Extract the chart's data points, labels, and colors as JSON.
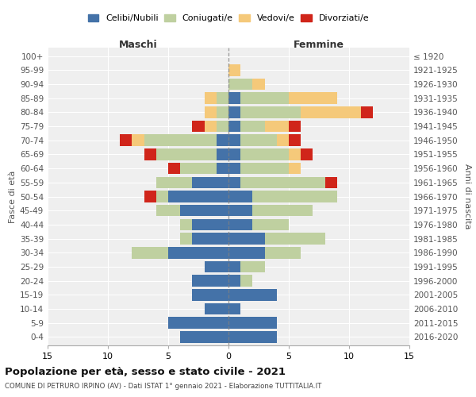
{
  "age_groups": [
    "0-4",
    "5-9",
    "10-14",
    "15-19",
    "20-24",
    "25-29",
    "30-34",
    "35-39",
    "40-44",
    "45-49",
    "50-54",
    "55-59",
    "60-64",
    "65-69",
    "70-74",
    "75-79",
    "80-84",
    "85-89",
    "90-94",
    "95-99",
    "100+"
  ],
  "birth_years": [
    "2016-2020",
    "2011-2015",
    "2006-2010",
    "2001-2005",
    "1996-2000",
    "1991-1995",
    "1986-1990",
    "1981-1985",
    "1976-1980",
    "1971-1975",
    "1966-1970",
    "1961-1965",
    "1956-1960",
    "1951-1955",
    "1946-1950",
    "1941-1945",
    "1936-1940",
    "1931-1935",
    "1926-1930",
    "1921-1925",
    "≤ 1920"
  ],
  "maschi": {
    "celibinubili": [
      4,
      5,
      2,
      3,
      3,
      2,
      5,
      3,
      3,
      4,
      5,
      3,
      1,
      1,
      1,
      0,
      0,
      0,
      0,
      0,
      0
    ],
    "coniugati": [
      0,
      0,
      0,
      0,
      0,
      0,
      3,
      1,
      1,
      2,
      1,
      3,
      3,
      5,
      6,
      1,
      1,
      1,
      0,
      0,
      0
    ],
    "vedovi": [
      0,
      0,
      0,
      0,
      0,
      0,
      0,
      0,
      0,
      0,
      0,
      0,
      0,
      0,
      1,
      1,
      1,
      1,
      0,
      0,
      0
    ],
    "divorziati": [
      0,
      0,
      0,
      0,
      0,
      0,
      0,
      0,
      0,
      0,
      1,
      0,
      1,
      1,
      1,
      1,
      0,
      0,
      0,
      0,
      0
    ]
  },
  "femmine": {
    "celibinubili": [
      4,
      4,
      1,
      4,
      1,
      1,
      3,
      3,
      2,
      2,
      2,
      1,
      1,
      1,
      1,
      1,
      1,
      1,
      0,
      0,
      0
    ],
    "coniugati": [
      0,
      0,
      0,
      0,
      1,
      2,
      3,
      5,
      3,
      5,
      7,
      7,
      4,
      4,
      3,
      2,
      5,
      4,
      2,
      0,
      0
    ],
    "vedovi": [
      0,
      0,
      0,
      0,
      0,
      0,
      0,
      0,
      0,
      0,
      0,
      0,
      1,
      1,
      1,
      2,
      5,
      4,
      1,
      1,
      0
    ],
    "divorziati": [
      0,
      0,
      0,
      0,
      0,
      0,
      0,
      0,
      0,
      0,
      0,
      1,
      0,
      1,
      1,
      1,
      1,
      0,
      0,
      0,
      0
    ]
  },
  "colors": {
    "celibinubili": "#4472a8",
    "coniugati": "#bfd0a0",
    "vedovi": "#f5c97a",
    "divorziati": "#d0251a"
  },
  "xlim": 15,
  "title": "Popolazione per età, sesso e stato civile - 2021",
  "subtitle": "COMUNE DI PETRURO IRPINO (AV) - Dati ISTAT 1° gennaio 2021 - Elaborazione TUTTITALIA.IT",
  "xlabel_left": "Maschi",
  "xlabel_right": "Femmine",
  "ylabel_left": "Fasce di età",
  "ylabel_right": "Anni di nascita",
  "legend_labels": [
    "Celibi/Nubili",
    "Coniugati/e",
    "Vedovi/e",
    "Divorziati/e"
  ],
  "bg_color": "#efefef",
  "grid_color": "#ffffff"
}
